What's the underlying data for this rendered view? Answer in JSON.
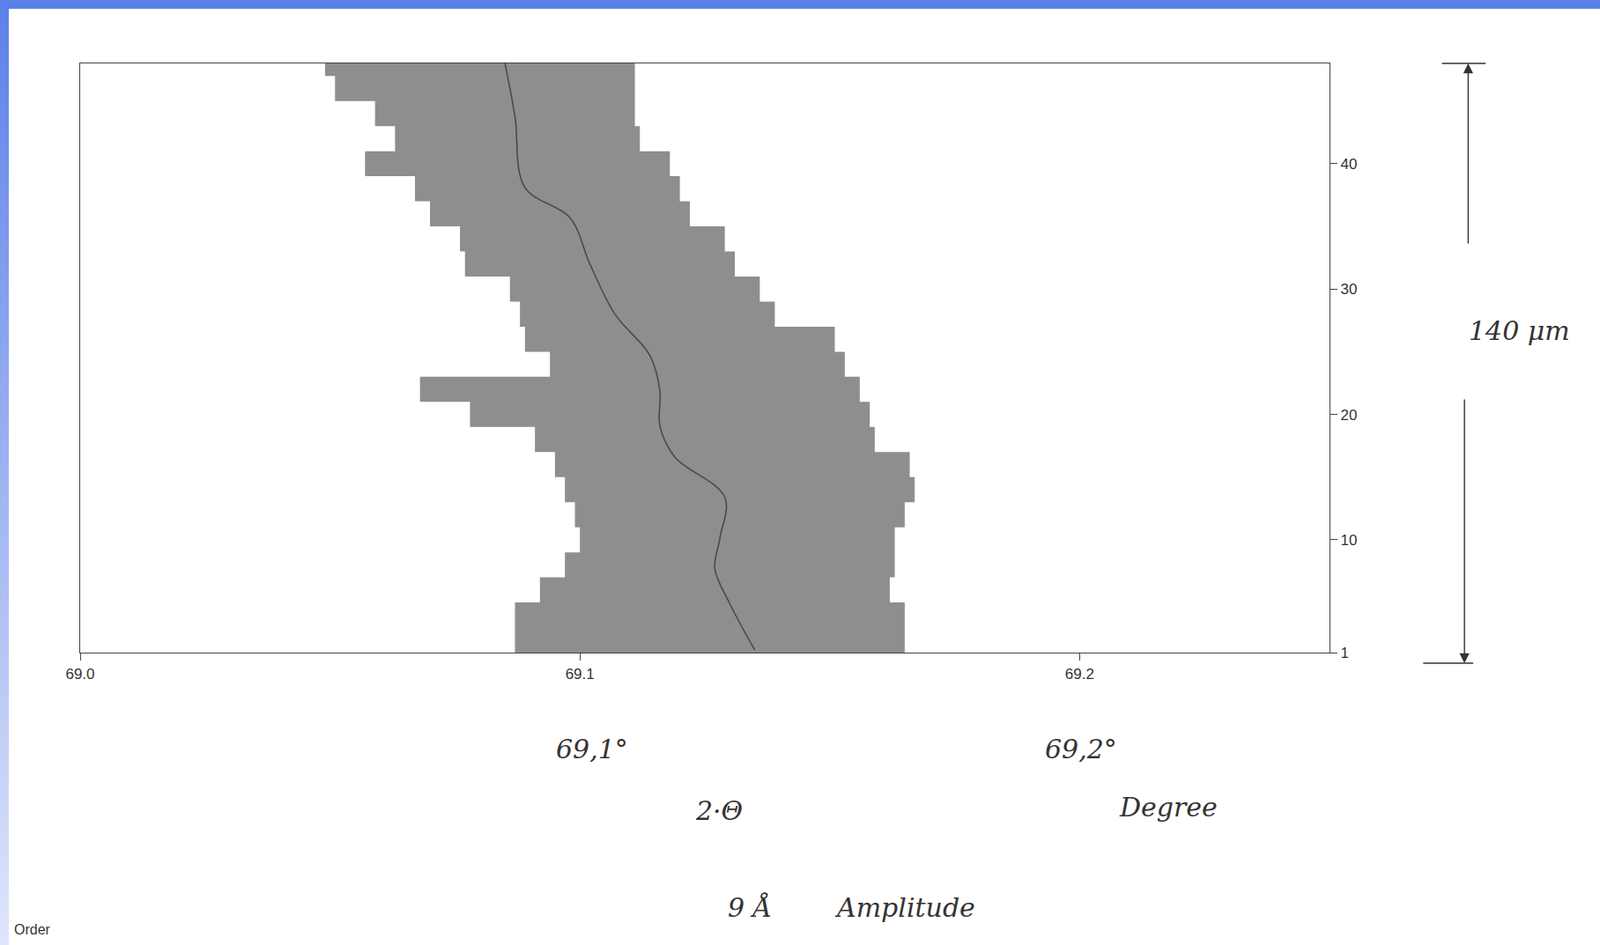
{
  "chart_data": {
    "type": "line",
    "xlim": [
      69.0,
      69.25
    ],
    "xticks": [
      {
        "value": 69.0,
        "label": "69.0"
      },
      69.1,
      69.2
    ],
    "ylim": [
      1,
      48
    ],
    "yticks": [
      1,
      10,
      20,
      30,
      40
    ],
    "grid": false,
    "series": [
      {
        "type": "area",
        "color": "#8e8e8e",
        "y": [
          1,
          3,
          5,
          7,
          9,
          11,
          13,
          15,
          17,
          19,
          21,
          23,
          25,
          27,
          29,
          31,
          33,
          35,
          37,
          39,
          41,
          43,
          45,
          47,
          48
        ],
        "x_left": [
          69.087,
          69.087,
          69.092,
          69.097,
          69.1,
          69.099,
          69.097,
          69.095,
          69.091,
          69.078,
          69.068,
          69.094,
          69.089,
          69.088,
          69.086,
          69.077,
          69.076,
          69.07,
          69.067,
          69.057,
          69.063,
          69.059,
          69.051,
          69.049,
          69.049
        ],
        "x_right": [
          69.165,
          69.165,
          69.162,
          69.163,
          69.163,
          69.165,
          69.167,
          69.166,
          69.159,
          69.158,
          69.156,
          69.153,
          69.151,
          69.139,
          69.136,
          69.131,
          69.129,
          69.122,
          69.12,
          69.118,
          69.112,
          69.111,
          69.111,
          69.111,
          69.111
        ]
      },
      {
        "type": "line",
        "color": "#4a4a4a",
        "line_style": "solid",
        "y": [
          1.2,
          4.9,
          7.7,
          10.1,
          13.4,
          16.6,
          19.1,
          21.9,
          24.7,
          28.0,
          32.0,
          35.7,
          38.1,
          43.8,
          48.0
        ],
        "x": [
          69.135,
          69.13,
          69.127,
          69.128,
          69.129,
          69.119,
          69.116,
          69.116,
          69.114,
          69.107,
          69.102,
          69.098,
          69.089,
          69.087,
          69.085
        ]
      }
    ],
    "annotations": [
      "69,1°",
      "69,2°",
      "2·Θ",
      "Degree",
      "9 Å",
      "Amplitude",
      "140 μm",
      "Order"
    ]
  }
}
